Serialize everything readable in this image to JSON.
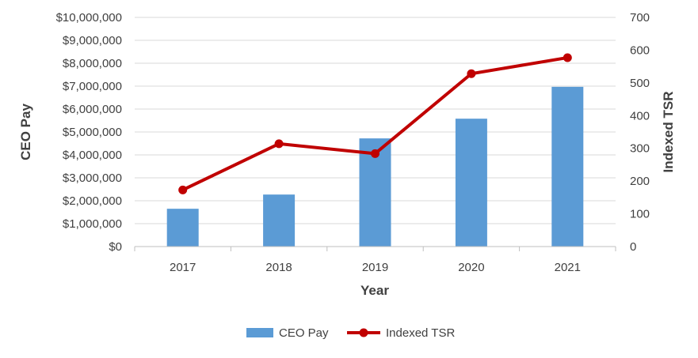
{
  "chart_data": {
    "type": "bar+line",
    "title": "",
    "xlabel": "Year",
    "ylabel_left": "CEO Pay",
    "ylabel_right": "Indexed TSR",
    "categories": [
      "2017",
      "2018",
      "2019",
      "2020",
      "2021"
    ],
    "series": [
      {
        "name": "CEO Pay",
        "type": "bar",
        "axis": "left",
        "color": "#5b9bd5",
        "values": [
          1650000,
          2270000,
          4720000,
          5580000,
          6970000
        ]
      },
      {
        "name": "Indexed TSR",
        "type": "line",
        "axis": "right",
        "color": "#c00000",
        "values": [
          173,
          314,
          284,
          528,
          577
        ]
      }
    ],
    "ylim_left": [
      0,
      10000000
    ],
    "ylim_right": [
      0,
      700
    ],
    "yticks_left": [
      "$0",
      "$1,000,000",
      "$2,000,000",
      "$3,000,000",
      "$4,000,000",
      "$5,000,000",
      "$6,000,000",
      "$7,000,000",
      "$8,000,000",
      "$9,000,000",
      "$10,000,000"
    ],
    "yticks_right": [
      "0",
      "100",
      "200",
      "300",
      "400",
      "500",
      "600",
      "700"
    ],
    "grid": true,
    "legend_position": "bottom"
  }
}
